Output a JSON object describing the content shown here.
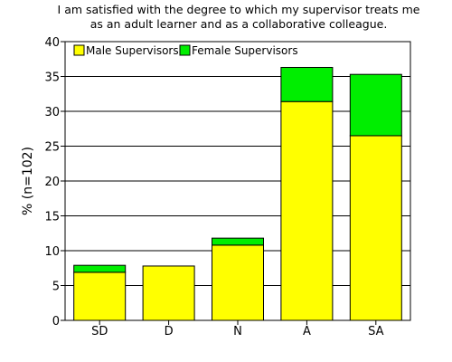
{
  "chart_data": {
    "type": "bar",
    "stacked": true,
    "title_lines": [
      "I am satisfied with the degree to which my supervisor treats me",
      "as an adult learner and as a collaborative colleague."
    ],
    "xlabel": "",
    "ylabel": "% (n=102)",
    "ylim": [
      0,
      40
    ],
    "yticks": [
      0,
      5,
      10,
      15,
      20,
      25,
      30,
      35,
      40
    ],
    "categories": [
      "SD",
      "D",
      "N",
      "A",
      "SA"
    ],
    "series": [
      {
        "name": "Male Supervisors",
        "color": "#ffff00",
        "values": [
          6.9,
          7.8,
          10.8,
          31.4,
          26.5
        ]
      },
      {
        "name": "Female Supervisors",
        "color": "#00ee00",
        "values": [
          1.0,
          0.0,
          1.0,
          4.9,
          8.8
        ]
      }
    ],
    "grid": true,
    "legend_position": "top-left"
  }
}
